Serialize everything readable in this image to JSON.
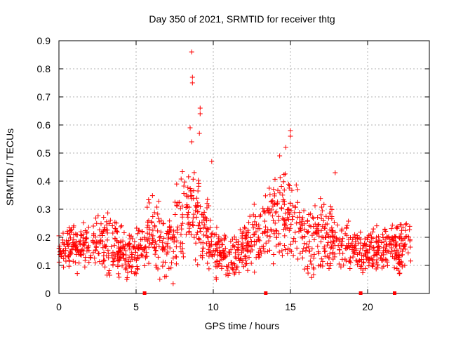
{
  "chart_data": {
    "type": "scatter",
    "title": "Day 350 of 2021, SRMTID for receiver thtg",
    "xlabel": "GPS time / hours",
    "ylabel": "SRMTID / TECUs",
    "xlim": [
      0,
      24
    ],
    "ylim": [
      0,
      0.9
    ],
    "xticks": [
      0,
      5,
      10,
      15,
      20
    ],
    "xtick_labels": [
      "0",
      "5",
      "10",
      "15",
      "20"
    ],
    "yticks": [
      0,
      0.1,
      0.2,
      0.3,
      0.4,
      0.5,
      0.6,
      0.7,
      0.8,
      0.9
    ],
    "ytick_labels": [
      "0",
      "0.1",
      "0.2",
      "0.3",
      "0.4",
      "0.5",
      "0.6",
      "0.7",
      "0.8",
      "0.9"
    ],
    "grid": true,
    "marker": "+",
    "series": [
      {
        "name": "SRMTID",
        "color": "#ff0000",
        "notable_points": [
          {
            "x": 8.6,
            "y": 0.86
          },
          {
            "x": 8.65,
            "y": 0.77
          },
          {
            "x": 8.65,
            "y": 0.75
          },
          {
            "x": 9.15,
            "y": 0.66
          },
          {
            "x": 9.15,
            "y": 0.64
          },
          {
            "x": 8.5,
            "y": 0.59
          },
          {
            "x": 15.0,
            "y": 0.58
          },
          {
            "x": 15.0,
            "y": 0.56
          },
          {
            "x": 9.1,
            "y": 0.57
          },
          {
            "x": 8.6,
            "y": 0.54
          },
          {
            "x": 14.7,
            "y": 0.52
          },
          {
            "x": 9.9,
            "y": 0.47
          },
          {
            "x": 14.3,
            "y": 0.49
          },
          {
            "x": 17.9,
            "y": 0.43
          },
          {
            "x": 4.4,
            "y": 0.05
          },
          {
            "x": 7.4,
            "y": 0.035
          },
          {
            "x": 10.2,
            "y": 0.05
          }
        ],
        "envelope_hours": [
          0,
          1,
          2,
          3,
          4,
          5,
          6,
          7,
          8,
          9,
          10,
          11,
          12,
          13,
          14,
          15,
          16,
          17,
          18,
          19,
          20,
          21,
          22,
          22.8
        ],
        "envelope_low": [
          0.1,
          0.1,
          0.1,
          0.09,
          0.06,
          0.07,
          0.1,
          0.06,
          0.12,
          0.13,
          0.08,
          0.06,
          0.08,
          0.1,
          0.12,
          0.1,
          0.07,
          0.08,
          0.09,
          0.09,
          0.08,
          0.09,
          0.08,
          0.08
        ],
        "envelope_high": [
          0.21,
          0.24,
          0.26,
          0.31,
          0.24,
          0.23,
          0.36,
          0.3,
          0.45,
          0.47,
          0.26,
          0.2,
          0.27,
          0.35,
          0.45,
          0.47,
          0.28,
          0.36,
          0.28,
          0.26,
          0.24,
          0.27,
          0.25,
          0.3
        ],
        "gap_markers_x": [
          5.55,
          13.4,
          19.55,
          21.75
        ]
      }
    ]
  }
}
